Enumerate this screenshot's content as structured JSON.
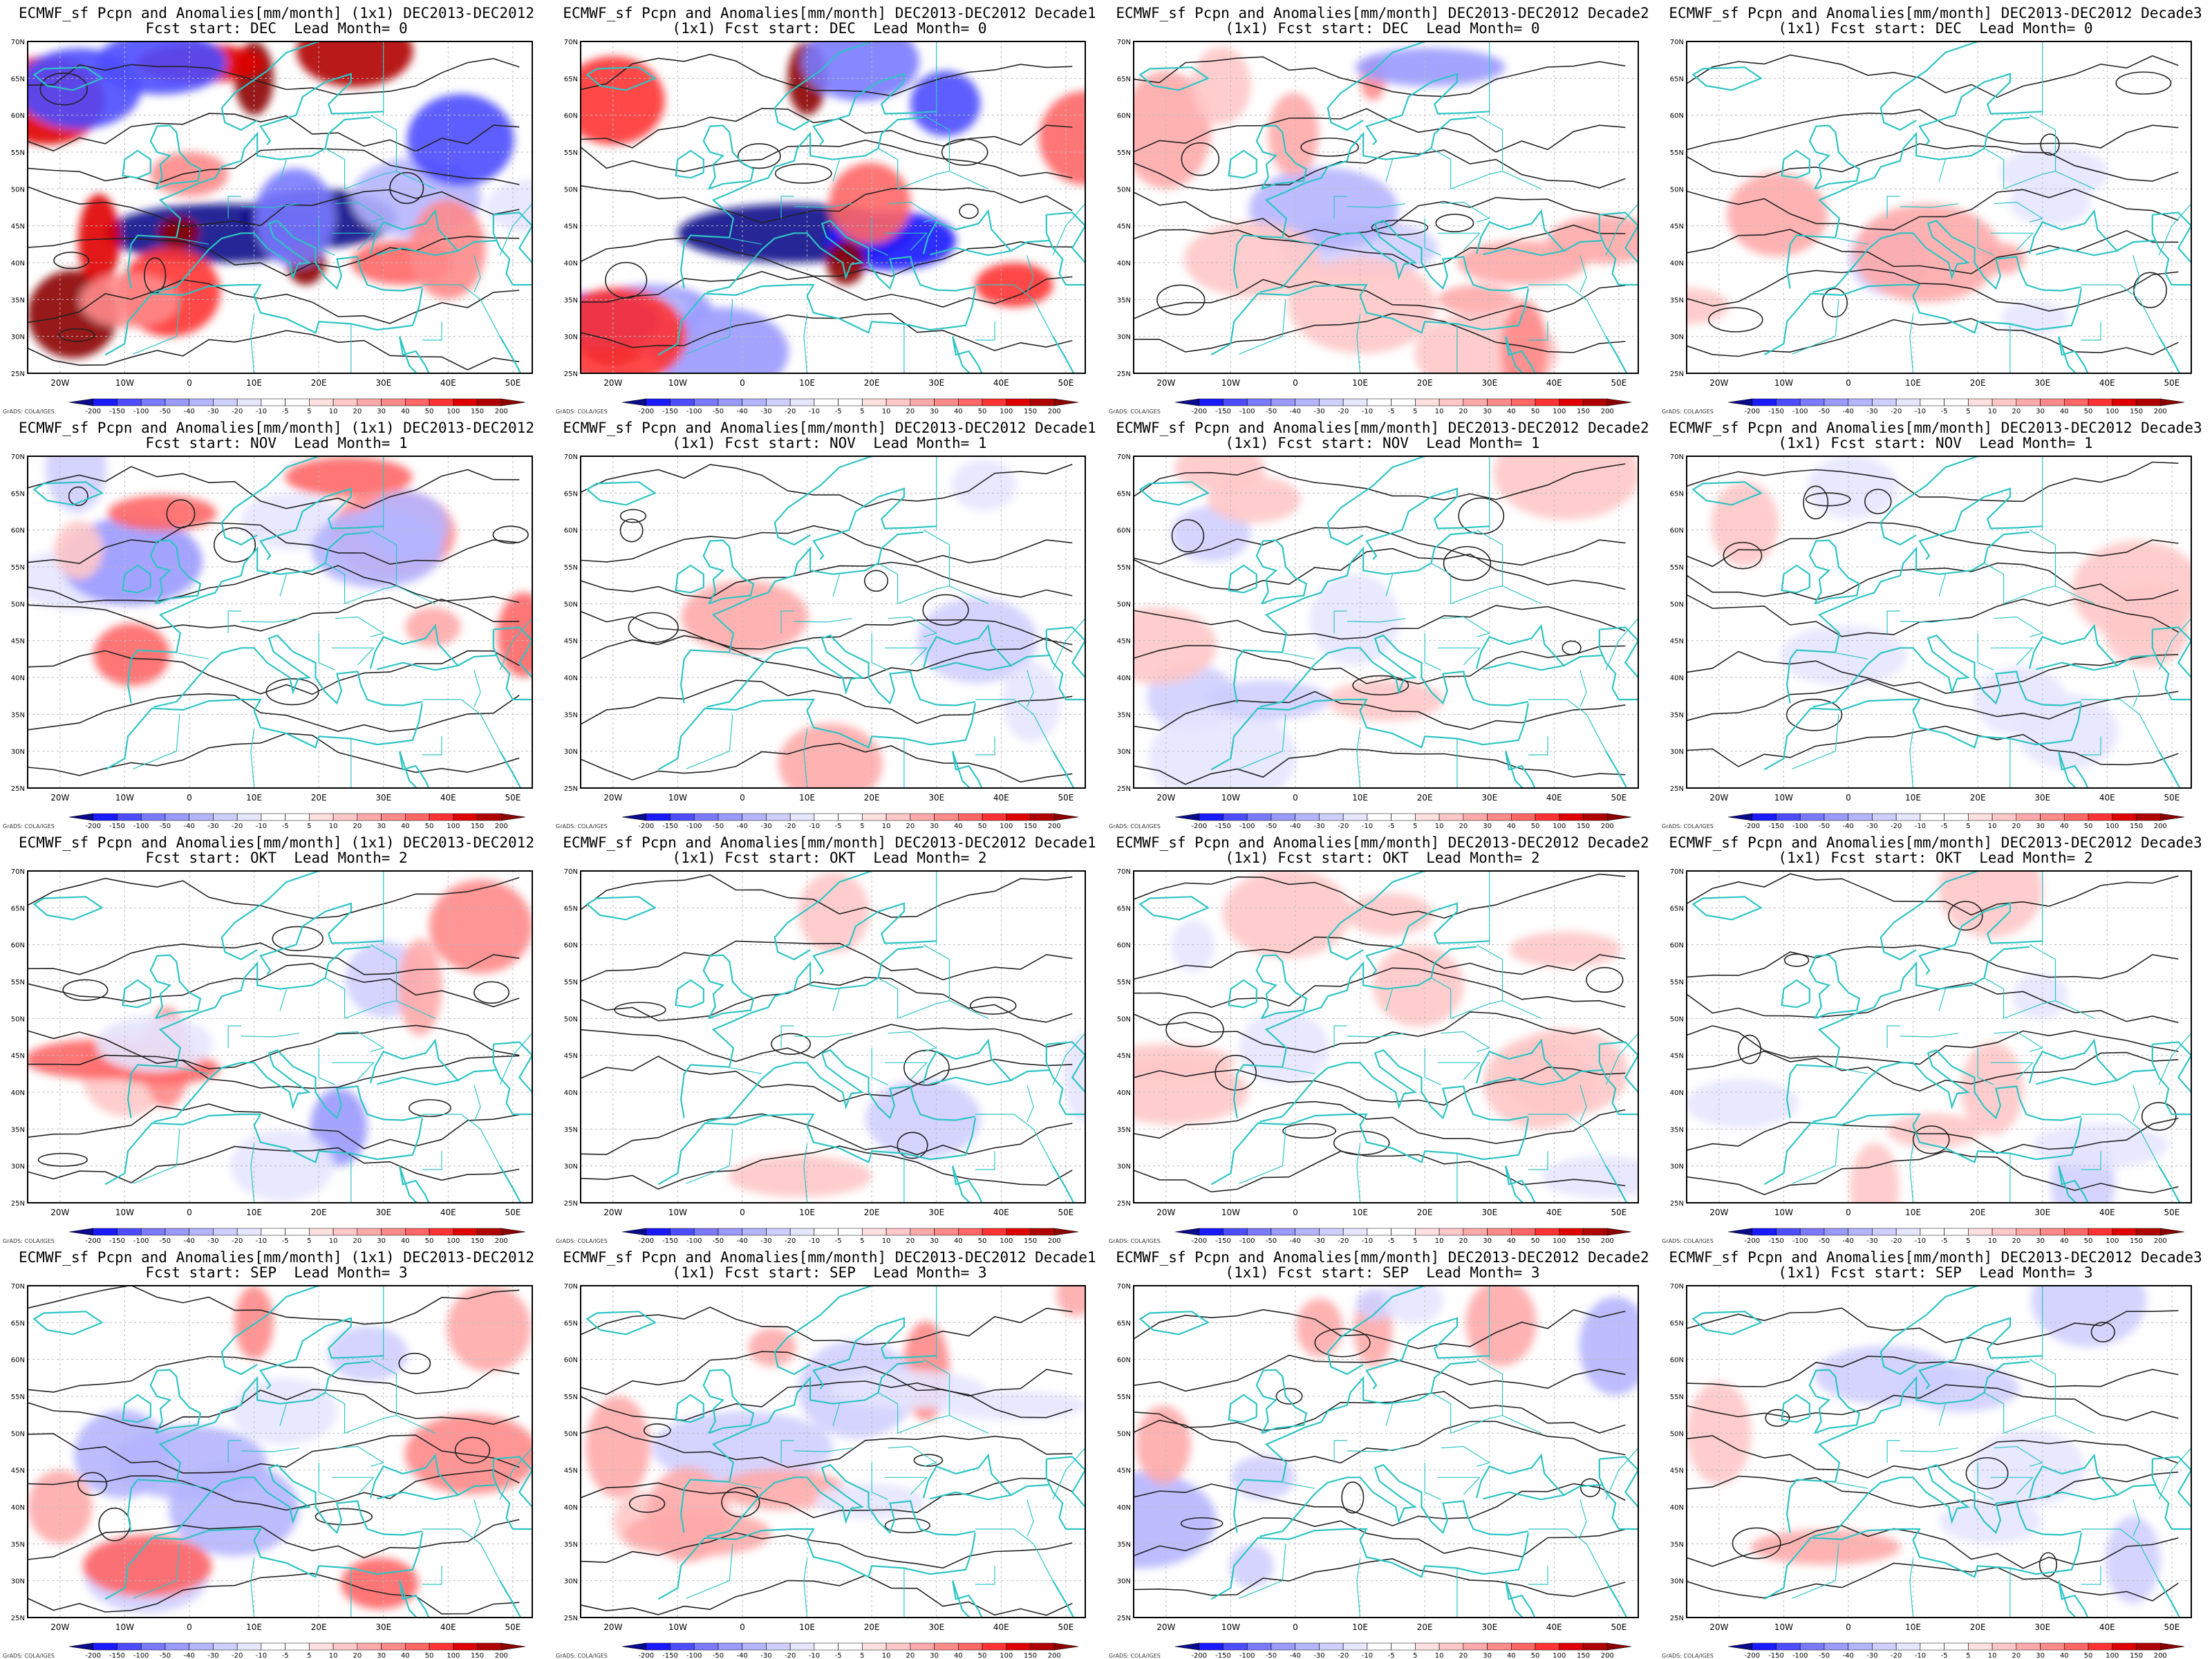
{
  "common": {
    "title_left_1col": "ECMWF_sf Pcpn and Anomalies[mm/month] (1x1) DEC2013-DEC2012",
    "title_decade_prefix": "ECMWF_sf Pcpn and Anomalies[mm/month] DEC2013-DEC2012 ",
    "lat_labels": [
      "70N",
      "65N",
      "60N",
      "55N",
      "50N",
      "45N",
      "40N",
      "35N",
      "30N",
      "25N"
    ],
    "lon_labels": [
      "20W",
      "10W",
      "0",
      "10E",
      "20E",
      "30E",
      "40E",
      "50E"
    ],
    "colorbar_ticks": [
      "-200",
      "-150",
      "-100",
      "-50",
      "-40",
      "-30",
      "-20",
      "-10",
      "-5",
      "5",
      "10",
      "20",
      "30",
      "40",
      "50",
      "100",
      "150",
      "200"
    ],
    "colorbar_colors": [
      "#0a0a8c",
      "#1a1aff",
      "#4d4dff",
      "#7a7aff",
      "#9a9aff",
      "#b5b5ff",
      "#cfcfff",
      "#e6e6ff",
      "#ffffff",
      "#ffffff",
      "#ffe0e0",
      "#ffc8c8",
      "#ffaaaa",
      "#ff8a8a",
      "#ff6666",
      "#ff3333",
      "#e00000",
      "#b00000",
      "#8c0000"
    ],
    "credit": "GrADS: COLA/IGES",
    "coast_color": "#2ec4c4",
    "contour_color": "#222222",
    "neg_color": "#5a5aff",
    "pos_color": "#ff5050"
  },
  "panels": [
    {
      "name": "r1c1",
      "line1": "ECMWF_sf Pcpn and Anomalies[mm/month] (1x1) DEC2013-DEC2012",
      "line2": "Fcst start: DEC  Lead Month= 0",
      "intensity": 1.0,
      "seed": 1
    },
    {
      "name": "r1c2",
      "line1": "ECMWF_sf Pcpn and Anomalies[mm/month] DEC2013-DEC2012 Decade1",
      "line2": "(1x1) Fcst start: DEC  Lead Month= 0",
      "intensity": 0.95,
      "seed": 2
    },
    {
      "name": "r1c3",
      "line1": "ECMWF_sf Pcpn and Anomalies[mm/month] DEC2013-DEC2012 Decade2",
      "line2": "(1x1) Fcst start: DEC  Lead Month= 0",
      "intensity": 0.5,
      "seed": 3
    },
    {
      "name": "r1c4",
      "line1": "ECMWF_sf Pcpn and Anomalies[mm/month] DEC2013-DEC2012 Decade3",
      "line2": "(1x1) Fcst start: DEC  Lead Month= 0",
      "intensity": 0.3,
      "seed": 4
    },
    {
      "name": "r2c1",
      "line1": "ECMWF_sf Pcpn and Anomalies[mm/month] (1x1) DEC2013-DEC2012",
      "line2": "Fcst start: NOV  Lead Month= 1",
      "intensity": 0.55,
      "seed": 5
    },
    {
      "name": "r2c2",
      "line1": "ECMWF_sf Pcpn and Anomalies[mm/month] DEC2013-DEC2012 Decade1",
      "line2": "(1x1) Fcst start: NOV  Lead Month= 1",
      "intensity": 0.2,
      "seed": 6
    },
    {
      "name": "r2c3",
      "line1": "ECMWF_sf Pcpn and Anomalies[mm/month] DEC2013-DEC2012 Decade2",
      "line2": "(1x1) Fcst start: NOV  Lead Month= 1",
      "intensity": 0.25,
      "seed": 7
    },
    {
      "name": "r2c4",
      "line1": "ECMWF_sf Pcpn and Anomalies[mm/month] DEC2013-DEC2012 Decade3",
      "line2": "(1x1) Fcst start: NOV  Lead Month= 1",
      "intensity": 0.22,
      "seed": 8
    },
    {
      "name": "r3c1",
      "line1": "ECMWF_sf Pcpn and Anomalies[mm/month] (1x1) DEC2013-DEC2012",
      "line2": "Fcst start: OKT  Lead Month= 2",
      "intensity": 0.5,
      "seed": 9
    },
    {
      "name": "r3c2",
      "line1": "ECMWF_sf Pcpn and Anomalies[mm/month] DEC2013-DEC2012 Decade1",
      "line2": "(1x1) Fcst start: OKT  Lead Month= 2",
      "intensity": 0.2,
      "seed": 10
    },
    {
      "name": "r3c3",
      "line1": "ECMWF_sf Pcpn and Anomalies[mm/month] DEC2013-DEC2012 Decade2",
      "line2": "(1x1) Fcst start: OKT  Lead Month= 2",
      "intensity": 0.2,
      "seed": 11
    },
    {
      "name": "r3c4",
      "line1": "ECMWF_sf Pcpn and Anomalies[mm/month] DEC2013-DEC2012 Decade3",
      "line2": "(1x1) Fcst start: OKT  Lead Month= 2",
      "intensity": 0.2,
      "seed": 12
    },
    {
      "name": "r4c1",
      "line1": "ECMWF_sf Pcpn and Anomalies[mm/month] (1x1) DEC2013-DEC2012",
      "line2": "Fcst start: SEP  Lead Month= 3",
      "intensity": 0.55,
      "seed": 13
    },
    {
      "name": "r4c2",
      "line1": "ECMWF_sf Pcpn and Anomalies[mm/month] DEC2013-DEC2012 Decade1",
      "line2": "(1x1) Fcst start: SEP  Lead Month= 3",
      "intensity": 0.35,
      "seed": 14
    },
    {
      "name": "r4c3",
      "line1": "ECMWF_sf Pcpn and Anomalies[mm/month] DEC2013-DEC2012 Decade2",
      "line2": "(1x1) Fcst start: SEP  Lead Month= 3",
      "intensity": 0.35,
      "seed": 15
    },
    {
      "name": "r4c4",
      "line1": "ECMWF_sf Pcpn and Anomalies[mm/month] DEC2013-DEC2012 Decade3",
      "line2": "(1x1) Fcst start: SEP  Lead Month= 3",
      "intensity": 0.3,
      "seed": 16
    }
  ]
}
